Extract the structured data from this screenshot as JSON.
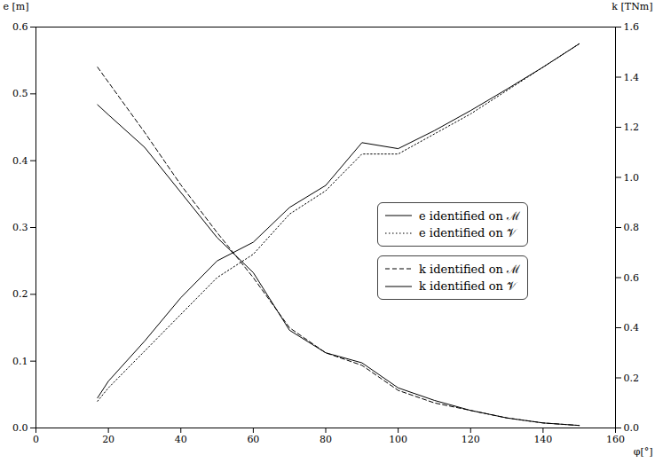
{
  "chart_data": {
    "type": "line",
    "x_label": "φ[°]",
    "y_label": "e [m]",
    "y2_label": "k [TNm]",
    "x": [
      17,
      20,
      30,
      40,
      50,
      60,
      70,
      80,
      90,
      100,
      110,
      120,
      130,
      140,
      150
    ],
    "xlim": [
      0,
      160
    ],
    "xticks": [
      0,
      20,
      40,
      60,
      80,
      100,
      120,
      140,
      160
    ],
    "ylim": [
      0,
      0.6
    ],
    "yticks": [
      {
        "value": 0,
        "label": "0.0"
      },
      0.1,
      0.2,
      0.3,
      0.4,
      0.5,
      0.6
    ],
    "y2lim": [
      0,
      1.6
    ],
    "y2ticks": [
      {
        "value": 0,
        "label": "0.0"
      },
      0.2,
      0.4,
      0.6,
      0.8,
      {
        "value": 1,
        "label": "1.0"
      },
      1.2,
      1.4,
      1.6
    ],
    "grid": false,
    "series": [
      {
        "name": "e identified on ℳ",
        "color": "#000000",
        "line_style": "solid",
        "values": [
          0.045,
          0.07,
          0.13,
          0.195,
          0.25,
          0.278,
          0.33,
          0.363,
          0.427,
          0.418,
          0.445,
          0.475,
          0.507,
          0.54,
          0.575
        ]
      },
      {
        "name": "e identified on 𝒱",
        "color": "#000000",
        "line_style": "dotted",
        "values": [
          0.04,
          0.06,
          0.115,
          0.17,
          0.225,
          0.26,
          0.32,
          0.355,
          0.41,
          0.41,
          0.44,
          0.47,
          0.505,
          0.54,
          0.575
        ]
      },
      {
        "name": "k identified on ℳ",
        "color": "#000000",
        "line_style": "dashed",
        "axis": "y2",
        "values": [
          1.44,
          1.38,
          1.18,
          0.97,
          0.78,
          0.6,
          0.4,
          0.3,
          0.25,
          0.15,
          0.1,
          0.07,
          0.04,
          0.02,
          0.01
        ]
      },
      {
        "name": "k identified on 𝒱",
        "color": "#000000",
        "line_style": "solid",
        "axis": "y2",
        "values": [
          1.29,
          1.25,
          1.12,
          0.94,
          0.76,
          0.62,
          0.39,
          0.3,
          0.26,
          0.16,
          0.11,
          0.07,
          0.04,
          0.02,
          0.01
        ]
      }
    ]
  }
}
